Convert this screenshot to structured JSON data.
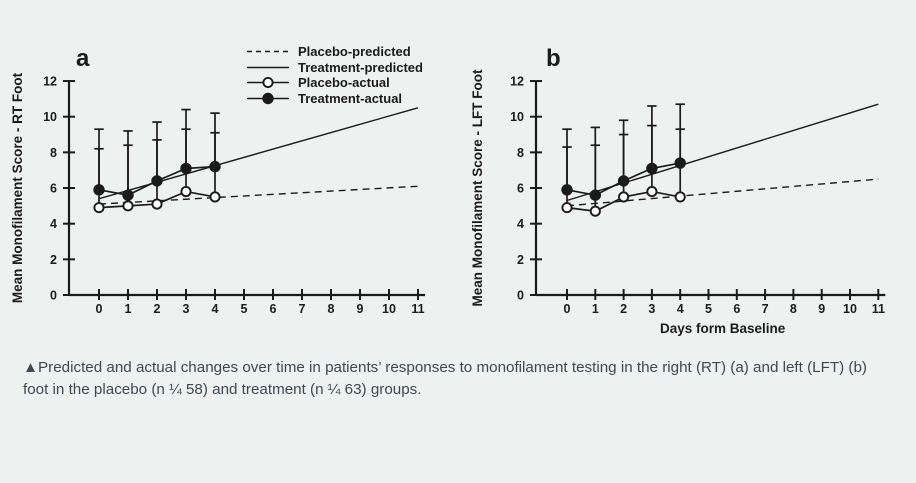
{
  "colors": {
    "background": "#edf1ef",
    "ink": "#1b1b1b",
    "open_marker_fill": "#ffffff",
    "caption_text": "#3d4a52"
  },
  "legend": {
    "position": "top-left-panel",
    "items": [
      {
        "label": "Placebo-predicted",
        "swatch": "dashed-line"
      },
      {
        "label": "Treatment-predicted",
        "swatch": "solid-line"
      },
      {
        "label": "Placebo-actual",
        "swatch": "open-circle-line"
      },
      {
        "label": "Treatment-actual",
        "swatch": "filled-circle-line"
      }
    ]
  },
  "caption": "▲Predicted and actual changes over time in patients’ responses to monofilament testing in the right (RT) (a) and left (LFT) (b) foot in the placebo (n ¼ 58) and treatment (n ¼ 63) groups.",
  "chart_data": [
    {
      "type": "line",
      "panel_label": "a",
      "title": "",
      "xlabel": "",
      "ylabel": "Mean Monofilament Score - RT Foot",
      "xlim": [
        0,
        11
      ],
      "ylim": [
        0,
        12
      ],
      "xticks": [
        0,
        1,
        2,
        3,
        4,
        5,
        6,
        7,
        8,
        9,
        10,
        11
      ],
      "yticks": [
        0,
        2,
        4,
        6,
        8,
        10,
        12
      ],
      "grid": false,
      "series": [
        {
          "name": "Placebo-predicted",
          "style": "dashed",
          "marker": "none",
          "x": [
            0,
            11
          ],
          "y": [
            5.1,
            6.1
          ]
        },
        {
          "name": "Treatment-predicted",
          "style": "solid",
          "marker": "none",
          "x": [
            0,
            11
          ],
          "y": [
            5.4,
            10.5
          ]
        },
        {
          "name": "Placebo-actual",
          "style": "solid",
          "marker": "open-circle",
          "x": [
            0,
            1,
            2,
            3,
            4
          ],
          "y": [
            4.9,
            5.0,
            5.1,
            5.8,
            5.5
          ],
          "err_top": [
            8.2,
            8.4,
            8.7,
            9.3,
            9.1
          ]
        },
        {
          "name": "Treatment-actual",
          "style": "solid",
          "marker": "filled-circle",
          "x": [
            0,
            1,
            2,
            3,
            4
          ],
          "y": [
            5.9,
            5.6,
            6.4,
            7.1,
            7.2
          ],
          "err_top": [
            9.3,
            9.2,
            9.7,
            10.4,
            10.2
          ]
        }
      ]
    },
    {
      "type": "line",
      "panel_label": "b",
      "title": "",
      "xlabel": "Days form Baseline",
      "ylabel": "Mean Monofilament Score - LFT Foot",
      "xlim": [
        0,
        11
      ],
      "ylim": [
        0,
        12
      ],
      "xticks": [
        0,
        1,
        2,
        3,
        4,
        5,
        6,
        7,
        8,
        9,
        10,
        11
      ],
      "yticks": [
        0,
        2,
        4,
        6,
        8,
        10,
        12
      ],
      "grid": false,
      "series": [
        {
          "name": "Placebo-predicted",
          "style": "dashed",
          "marker": "none",
          "x": [
            0,
            11
          ],
          "y": [
            5.0,
            6.5
          ]
        },
        {
          "name": "Treatment-predicted",
          "style": "solid",
          "marker": "none",
          "x": [
            0,
            11
          ],
          "y": [
            5.3,
            10.7
          ]
        },
        {
          "name": "Placebo-actual",
          "style": "solid",
          "marker": "open-circle",
          "x": [
            0,
            1,
            2,
            3,
            4
          ],
          "y": [
            4.9,
            4.7,
            5.5,
            5.8,
            5.5
          ],
          "err_top": [
            8.3,
            8.4,
            9.0,
            9.5,
            9.3
          ]
        },
        {
          "name": "Treatment-actual",
          "style": "solid",
          "marker": "filled-circle",
          "x": [
            0,
            1,
            2,
            3,
            4
          ],
          "y": [
            5.9,
            5.6,
            6.4,
            7.1,
            7.4
          ],
          "err_top": [
            9.3,
            9.4,
            9.8,
            10.6,
            10.7
          ]
        }
      ]
    }
  ]
}
